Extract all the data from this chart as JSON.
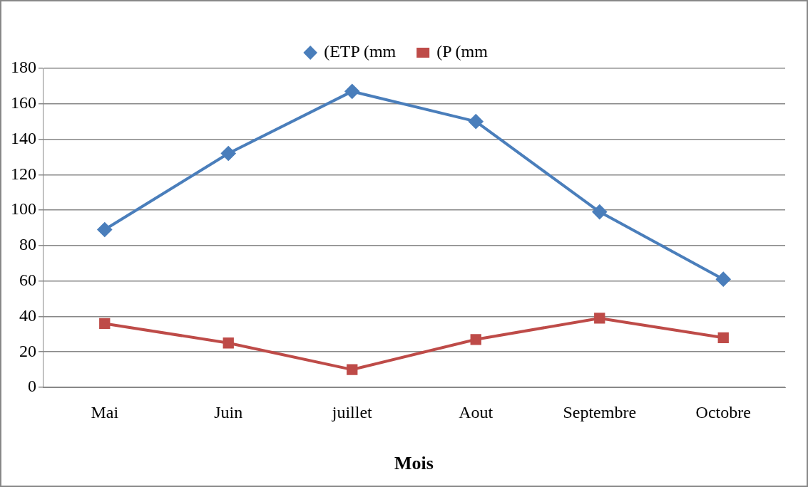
{
  "chart_data": {
    "type": "line",
    "xlabel": "Mois",
    "categories": [
      "Mai",
      "Juin",
      "juillet",
      "Aout",
      "Septembre",
      "Octobre"
    ],
    "series": [
      {
        "name": "(ETP (mm",
        "color": "#4a7ebb",
        "marker": "diamond",
        "values": [
          89,
          132,
          167,
          150,
          99,
          61
        ]
      },
      {
        "name": "(P (mm",
        "color": "#be4b48",
        "marker": "square",
        "values": [
          36,
          25,
          10,
          27,
          39,
          28
        ]
      }
    ],
    "ylim": [
      0,
      180
    ],
    "yticks": [
      0,
      20,
      40,
      60,
      80,
      100,
      120,
      140,
      160,
      180
    ],
    "grid": "y",
    "legend": "top",
    "line_style": "solid"
  }
}
